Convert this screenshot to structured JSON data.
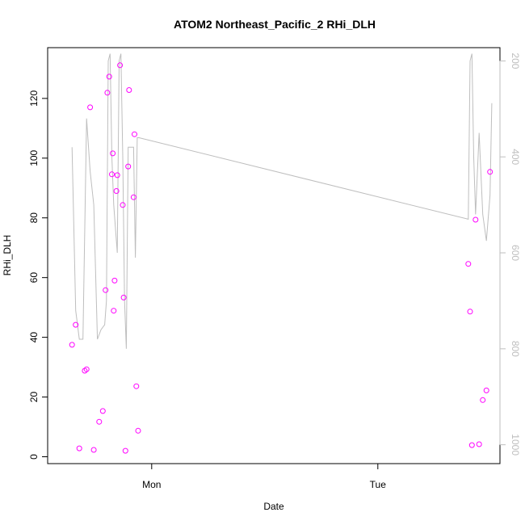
{
  "chart_data": {
    "type": "scatter",
    "title": "ATOM2 Northeast_Pacific_2 RHi_DLH",
    "xlabel": "Date",
    "ylabel": "RHi_DLH",
    "x_tick_labels": [
      "Mon",
      "Tue"
    ],
    "y_ticks": [
      0,
      20,
      40,
      60,
      80,
      100,
      120
    ],
    "y_range": [
      0,
      137
    ],
    "y2_ticks": [
      200,
      400,
      600,
      800,
      1000
    ],
    "y2_range": [
      1025,
      185
    ],
    "y2_reversed": true,
    "grid": false,
    "colors": {
      "points": "#ff00ff",
      "line": "#bebebe",
      "axes": "#000000",
      "secondary_axis": "#bebebe"
    },
    "series": [
      {
        "type": "scatter",
        "points": [
          {
            "x": 0.2,
            "y": 37.5
          },
          {
            "x": 0.6,
            "y": 44.2
          },
          {
            "x": 1.0,
            "y": 2.8
          },
          {
            "x": 1.6,
            "y": 28.8
          },
          {
            "x": 1.8,
            "y": 29.3
          },
          {
            "x": 2.2,
            "y": 117.0
          },
          {
            "x": 2.6,
            "y": 2.3
          },
          {
            "x": 3.2,
            "y": 11.7
          },
          {
            "x": 3.6,
            "y": 15.3
          },
          {
            "x": 3.9,
            "y": 55.8
          },
          {
            "x": 4.1,
            "y": 121.9
          },
          {
            "x": 4.3,
            "y": 127.3
          },
          {
            "x": 4.6,
            "y": 94.6
          },
          {
            "x": 4.7,
            "y": 101.6
          },
          {
            "x": 4.8,
            "y": 48.9
          },
          {
            "x": 4.9,
            "y": 59.0
          },
          {
            "x": 5.1,
            "y": 89.0
          },
          {
            "x": 5.2,
            "y": 94.3
          },
          {
            "x": 5.5,
            "y": 131.1
          },
          {
            "x": 5.8,
            "y": 84.3
          },
          {
            "x": 5.9,
            "y": 53.3
          },
          {
            "x": 6.1,
            "y": 2.0
          },
          {
            "x": 6.4,
            "y": 97.2
          },
          {
            "x": 6.5,
            "y": 122.8
          },
          {
            "x": 7.0,
            "y": 86.9
          },
          {
            "x": 7.1,
            "y": 108.0
          },
          {
            "x": 7.3,
            "y": 23.6
          },
          {
            "x": 7.5,
            "y": 8.7
          },
          {
            "x": 44.0,
            "y": 64.6
          },
          {
            "x": 44.2,
            "y": 48.6
          },
          {
            "x": 44.4,
            "y": 3.9
          },
          {
            "x": 44.8,
            "y": 79.4
          },
          {
            "x": 45.2,
            "y": 4.2
          },
          {
            "x": 45.6,
            "y": 19.0
          },
          {
            "x": 46.0,
            "y": 22.2
          },
          {
            "x": 46.4,
            "y": 95.4
          }
        ]
      },
      {
        "type": "line",
        "axis": "secondary",
        "points": [
          {
            "x": 0.2,
            "y": 380
          },
          {
            "x": 0.6,
            "y": 720
          },
          {
            "x": 1.0,
            "y": 780
          },
          {
            "x": 1.4,
            "y": 780
          },
          {
            "x": 1.8,
            "y": 320
          },
          {
            "x": 2.2,
            "y": 430
          },
          {
            "x": 2.6,
            "y": 500
          },
          {
            "x": 3.0,
            "y": 780
          },
          {
            "x": 3.4,
            "y": 760
          },
          {
            "x": 3.8,
            "y": 750
          },
          {
            "x": 4.0,
            "y": 700
          },
          {
            "x": 4.2,
            "y": 200
          },
          {
            "x": 4.4,
            "y": 185
          },
          {
            "x": 4.6,
            "y": 400
          },
          {
            "x": 4.8,
            "y": 500
          },
          {
            "x": 5.0,
            "y": 550
          },
          {
            "x": 5.2,
            "y": 600
          },
          {
            "x": 5.4,
            "y": 200
          },
          {
            "x": 5.6,
            "y": 185
          },
          {
            "x": 5.8,
            "y": 400
          },
          {
            "x": 6.0,
            "y": 700
          },
          {
            "x": 6.2,
            "y": 800
          },
          {
            "x": 6.4,
            "y": 380
          },
          {
            "x": 6.6,
            "y": 380
          },
          {
            "x": 6.8,
            "y": 380
          },
          {
            "x": 7.0,
            "y": 380
          },
          {
            "x": 7.2,
            "y": 610
          },
          {
            "x": 7.4,
            "y": 360
          },
          {
            "x": 7.6,
            "y": 360
          },
          {
            "x": 44.0,
            "y": 530
          },
          {
            "x": 44.2,
            "y": 200
          },
          {
            "x": 44.4,
            "y": 185
          },
          {
            "x": 44.6,
            "y": 400
          },
          {
            "x": 44.8,
            "y": 520
          },
          {
            "x": 45.2,
            "y": 350
          },
          {
            "x": 45.6,
            "y": 520
          },
          {
            "x": 46.0,
            "y": 575
          },
          {
            "x": 46.4,
            "y": 480
          },
          {
            "x": 46.6,
            "y": 288
          }
        ]
      }
    ]
  }
}
